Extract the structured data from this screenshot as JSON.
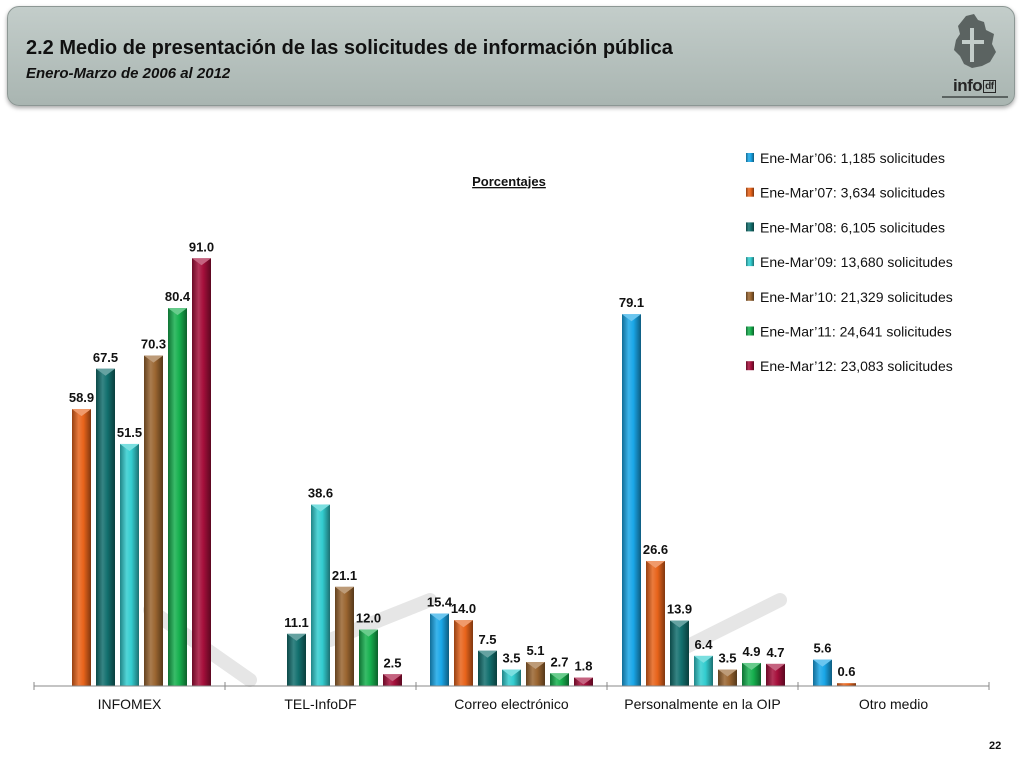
{
  "header": {
    "title": "2.2 Medio de presentación de las solicitudes de información pública",
    "subtitle": "Enero-Marzo de 2006 al 2012",
    "logo_text": "info",
    "logo_suffix": "df"
  },
  "page_number": "22",
  "chart_data": {
    "type": "bar",
    "title": "Porcentajes",
    "xlabel": "",
    "ylabel": "",
    "ylim": [
      0,
      100
    ],
    "grid": false,
    "legend_position": "top-right",
    "categories": [
      "INFOMEX",
      "TEL-InfoDF",
      "Correo electrónico",
      "Personalmente en la OIP",
      "Otro medio"
    ],
    "series": [
      {
        "name": "Ene-Mar’06: 1,185 solicitudes",
        "color": "#1aa7e8",
        "values": [
          null,
          null,
          15.4,
          79.1,
          5.6
        ]
      },
      {
        "name": "Ene-Mar’07: 3,634 solicitudes",
        "color": "#e8641b",
        "values": [
          58.9,
          null,
          14.0,
          26.6,
          0.6
        ]
      },
      {
        "name": "Ene-Mar’08: 6,105 solicitudes",
        "color": "#12706e",
        "values": [
          67.5,
          11.1,
          7.5,
          13.9,
          null
        ]
      },
      {
        "name": "Ene-Mar’09: 13,680 solicitudes",
        "color": "#33cdd0",
        "values": [
          51.5,
          38.6,
          3.5,
          6.4,
          null
        ]
      },
      {
        "name": "Ene-Mar’10: 21,329 solicitudes",
        "color": "#9a6530",
        "values": [
          70.3,
          21.1,
          5.1,
          3.5,
          null
        ]
      },
      {
        "name": "Ene-Mar’11: 24,641 solicitudes",
        "color": "#16b04e",
        "values": [
          80.4,
          12.0,
          2.7,
          4.9,
          null
        ]
      },
      {
        "name": "Ene-Mar’12: 23,083 solicitudes",
        "color": "#a50f3b",
        "values": [
          91.0,
          2.5,
          1.8,
          4.7,
          null
        ]
      }
    ],
    "data_labels": [
      [
        null,
        null,
        "15.4",
        "79.1",
        "5.6"
      ],
      [
        "58.9",
        null,
        "14.0",
        "26.6",
        "0.6"
      ],
      [
        "67.5",
        "11.1",
        "7.5",
        "13.9",
        null
      ],
      [
        "51.5",
        "38.6",
        "3.5",
        "6.4",
        null
      ],
      [
        "70.3",
        "21.1",
        "5.1",
        "3.5",
        null
      ],
      [
        "80.4",
        "12.0",
        "2.7",
        "4.9",
        null
      ],
      [
        "91.0",
        "2.5",
        "1.8",
        "4.7",
        null
      ]
    ]
  }
}
